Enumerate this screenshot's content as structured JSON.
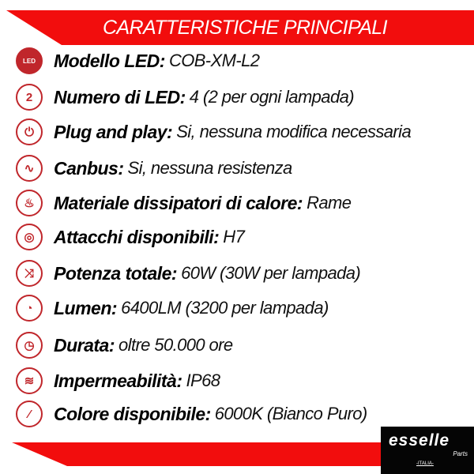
{
  "header": {
    "title": "CARATTERISTICHE PRINCIPALI"
  },
  "colors": {
    "accent": "#f20d0d",
    "icon": "#c0262b"
  },
  "specs": [
    {
      "icon": "led-icon",
      "glyph": "LED",
      "label": "Modello LED:",
      "value": "COB-XM-L2"
    },
    {
      "icon": "number-two-icon",
      "glyph": "2",
      "label": "Numero di LED:",
      "value": "4 (2 per ogni lampada)"
    },
    {
      "icon": "plug-icon",
      "glyph": "⏻",
      "label": "Plug and play:",
      "value": "Si, nessuna modifica necessaria"
    },
    {
      "icon": "wave-resistor-icon",
      "glyph": "∿",
      "label": "Canbus:",
      "value": "Si, nessuna resistenza"
    },
    {
      "icon": "heat-sink-icon",
      "glyph": "♨",
      "label": "Materiale dissipatori di calore:",
      "value": "Rame"
    },
    {
      "icon": "socket-icon",
      "glyph": "◎",
      "label": "Attacchi disponibili:",
      "value": "H7"
    },
    {
      "icon": "shuffle-icon",
      "glyph": "⤨",
      "label": "Potenza totale:",
      "value": "60W (30W per lampada)"
    },
    {
      "icon": "gauge-icon",
      "glyph": "◔",
      "label": "Lumen:",
      "value": "6400LM (3200 per lampada)"
    },
    {
      "icon": "clock-icon",
      "glyph": "◷",
      "label": "Durata:",
      "value": "oltre 50.000 ore"
    },
    {
      "icon": "water-icon",
      "glyph": "≋",
      "label": "Impermeabilità:",
      "value": "IP68"
    },
    {
      "icon": "brush-icon",
      "glyph": "⁄",
      "label": "Colore disponibile:",
      "value": "6000K (Bianco Puro)"
    }
  ],
  "logo": {
    "brand": "esselle",
    "sub": "Parts",
    "country": "-ITALIA-"
  }
}
